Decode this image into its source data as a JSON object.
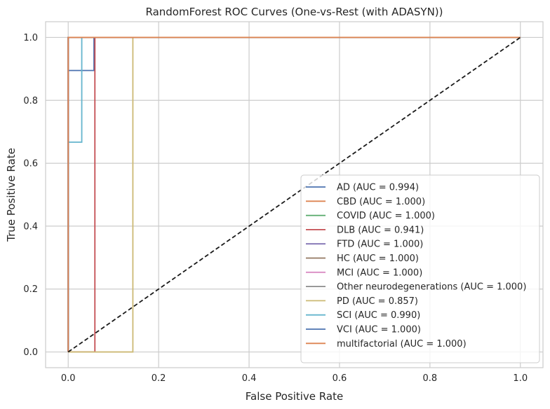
{
  "chart_data": {
    "type": "line",
    "title": "RandomForest ROC Curves (One-vs-Rest (with ADASYN))",
    "xlabel": "False Positive Rate",
    "ylabel": "True Positive Rate",
    "xlim": [
      -0.05,
      1.05
    ],
    "ylim": [
      -0.05,
      1.05
    ],
    "xticks": [
      0.0,
      0.2,
      0.4,
      0.6,
      0.8,
      1.0
    ],
    "yticks": [
      0.0,
      0.2,
      0.4,
      0.6,
      0.8,
      1.0
    ],
    "xtick_labels": [
      "0.0",
      "0.2",
      "0.4",
      "0.6",
      "0.8",
      "1.0"
    ],
    "ytick_labels": [
      "0.0",
      "0.2",
      "0.4",
      "0.6",
      "0.8",
      "1.0"
    ],
    "grid": true,
    "legend_position": "lower-right",
    "series": [
      {
        "name": "AD (AUC = 0.994)",
        "color": "#4c72b0",
        "x": [
          0,
          0,
          0.057,
          0.057,
          1
        ],
        "y": [
          0,
          0.895,
          0.895,
          1,
          1
        ]
      },
      {
        "name": "CBD (AUC = 1.000)",
        "color": "#dd8452",
        "x": [
          0,
          0,
          1
        ],
        "y": [
          0,
          1,
          1
        ]
      },
      {
        "name": "COVID (AUC = 1.000)",
        "color": "#55a868",
        "x": [
          0,
          0,
          1
        ],
        "y": [
          0,
          1,
          1
        ]
      },
      {
        "name": "DLB (AUC = 0.941)",
        "color": "#c44e52",
        "x": [
          0,
          0.059,
          0.059,
          1
        ],
        "y": [
          0,
          0,
          1,
          1
        ]
      },
      {
        "name": "FTD (AUC = 1.000)",
        "color": "#8172b3",
        "x": [
          0,
          0,
          1
        ],
        "y": [
          0,
          1,
          1
        ]
      },
      {
        "name": "HC (AUC = 1.000)",
        "color": "#937860",
        "x": [
          0,
          0,
          1
        ],
        "y": [
          0,
          1,
          1
        ]
      },
      {
        "name": "MCI (AUC = 1.000)",
        "color": "#da8bc3",
        "x": [
          0,
          0,
          1
        ],
        "y": [
          0,
          1,
          1
        ]
      },
      {
        "name": "Other neurodegenerations (AUC = 1.000)",
        "color": "#8c8c8c",
        "x": [
          0,
          0,
          1
        ],
        "y": [
          0,
          1,
          1
        ]
      },
      {
        "name": "PD (AUC = 0.857)",
        "color": "#ccb974",
        "x": [
          0,
          0.143,
          0.143,
          1
        ],
        "y": [
          0,
          0,
          1,
          1
        ]
      },
      {
        "name": "SCI (AUC = 0.990)",
        "color": "#64b5cd",
        "x": [
          0,
          0,
          0.03,
          0.03,
          1
        ],
        "y": [
          0,
          0.667,
          0.667,
          1,
          1
        ]
      },
      {
        "name": "VCI (AUC = 1.000)",
        "color": "#4c72b0",
        "x": [
          0,
          0,
          1
        ],
        "y": [
          0,
          1,
          1
        ]
      },
      {
        "name": "multifactorial (AUC = 1.000)",
        "color": "#dd8452",
        "x": [
          0,
          0,
          1
        ],
        "y": [
          0,
          1,
          1
        ]
      }
    ],
    "diagonal": {
      "x": [
        0,
        1
      ],
      "y": [
        0,
        1
      ],
      "color": "#1a1a1a",
      "style": "dashed"
    }
  }
}
